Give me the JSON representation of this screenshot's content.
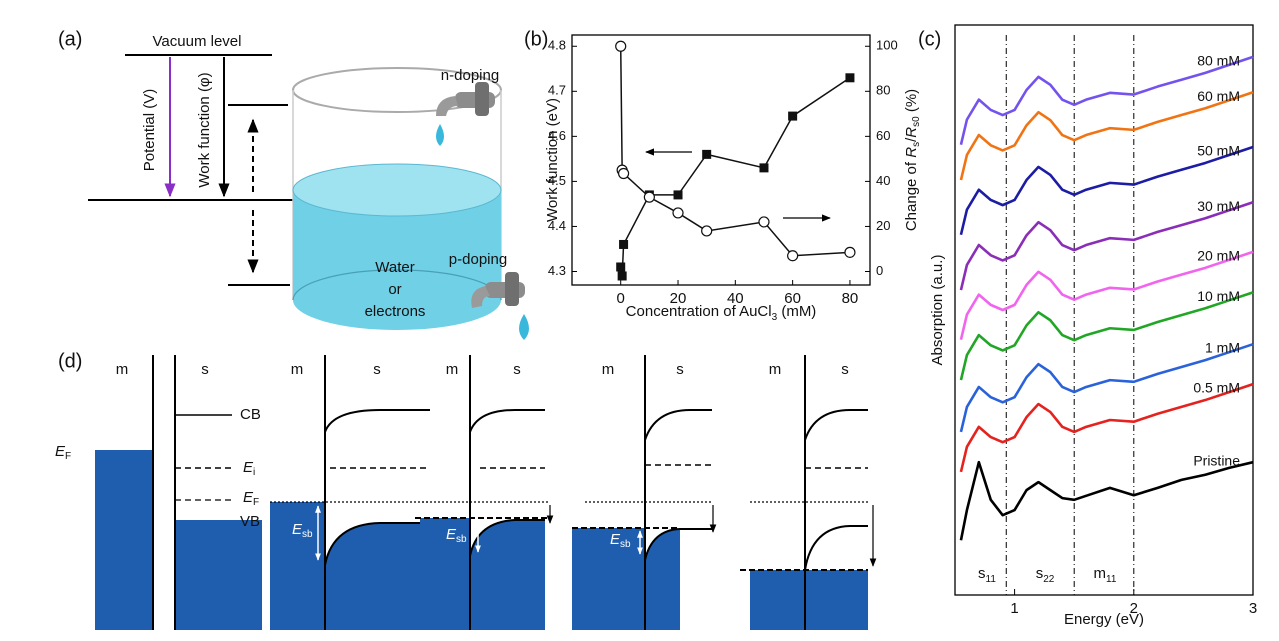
{
  "panel_a": {
    "label": "(a)",
    "vacuum": "Vacuum level",
    "potential": "Potential (V)",
    "work_function": "Work function (φ)",
    "n_doping": "n-doping",
    "p_doping": "p-doping",
    "water": [
      "Water",
      "or",
      "electrons"
    ]
  },
  "chart_data": [
    {
      "type": "line",
      "panel": "(b)",
      "xlabel": {
        "text": "Concentration of AuCl",
        "sub": "3",
        "end": " (mM)"
      },
      "ylabel": "Work function (eV)",
      "y2label": {
        "pre": "Change of ",
        "r1": "R",
        "s1": "s",
        "slash": "/",
        "r2": "R",
        "s2": "s0",
        "end": " (%)"
      },
      "xlim": [
        -17,
        87
      ],
      "xticks": [
        0,
        20,
        40,
        60,
        80
      ],
      "ylim": [
        4.27,
        4.825
      ],
      "yticks": [
        4.3,
        4.4,
        4.5,
        4.6,
        4.7,
        4.8
      ],
      "y2lim": [
        -6,
        105
      ],
      "y2ticks": [
        0,
        20,
        40,
        60,
        80,
        100
      ],
      "series": [
        {
          "marker": "square",
          "color": "#111111",
          "x": [
            0,
            0.5,
            1,
            10,
            20,
            30,
            50,
            60,
            80
          ],
          "values": [
            4.31,
            4.29,
            4.36,
            4.47,
            4.47,
            4.56,
            4.53,
            4.645,
            4.73
          ]
        },
        {
          "marker": "circle",
          "color": "#111111",
          "axis": "y2",
          "x": [
            0,
            0.5,
            1,
            10,
            20,
            30,
            50,
            60,
            80
          ],
          "values": [
            100,
            45,
            43.5,
            33,
            26,
            18,
            22,
            7,
            8.5
          ]
        }
      ]
    },
    {
      "type": "line",
      "panel": "(c)",
      "xlabel": "Energy (eV)",
      "ylabel": "Absorption (a.u.)",
      "xlim": [
        0.5,
        3
      ],
      "xticks": [
        1,
        2,
        3
      ],
      "ylim": [
        0,
        100
      ],
      "x": [
        0.55,
        0.6,
        0.7,
        0.8,
        0.9,
        1.0,
        1.1,
        1.2,
        1.3,
        1.4,
        1.5,
        1.6,
        1.8,
        2.0,
        2.2,
        2.4,
        2.6,
        2.8,
        3.0
      ],
      "vlines": [
        0.93,
        1.5,
        2.0
      ],
      "vline_labels": [
        {
          "main": "s",
          "sub": "11"
        },
        {
          "main": "s",
          "sub": "22"
        },
        {
          "main": "m",
          "sub": "11"
        }
      ],
      "series": [
        {
          "name": "80 mM",
          "color": "#7452ee",
          "values": [
            79.0,
            83.4,
            86.9,
            85.1,
            84.2,
            85.1,
            88.6,
            90.9,
            89.5,
            86.9,
            86.0,
            86.9,
            88.1,
            87.8,
            89.2,
            90.4,
            91.6,
            93.0,
            94.4
          ]
        },
        {
          "name": "60 mM",
          "color": "#f07414",
          "values": [
            72.8,
            77.2,
            80.7,
            78.9,
            78.0,
            78.9,
            82.4,
            84.7,
            83.3,
            80.7,
            79.8,
            80.7,
            81.9,
            81.6,
            83.0,
            84.2,
            85.4,
            86.8,
            88.2
          ]
        },
        {
          "name": "50 mM",
          "color": "#1c1ca4",
          "values": [
            63.2,
            67.6,
            71.1,
            69.3,
            68.4,
            69.3,
            72.8,
            75.1,
            73.7,
            71.1,
            70.2,
            71.1,
            72.3,
            72.0,
            73.4,
            74.6,
            75.8,
            77.2,
            78.6
          ]
        },
        {
          "name": "30 mM",
          "color": "#8a2eb8",
          "values": [
            53.5,
            57.9,
            61.4,
            59.6,
            58.7,
            59.6,
            63.1,
            65.4,
            64.0,
            61.4,
            60.5,
            61.4,
            62.6,
            62.3,
            63.7,
            64.9,
            66.1,
            67.5,
            68.9
          ]
        },
        {
          "name": "20 mM",
          "color": "#f064ee",
          "values": [
            44.8,
            49.2,
            52.7,
            50.9,
            50.0,
            50.9,
            54.4,
            56.7,
            55.3,
            52.7,
            51.8,
            52.7,
            53.9,
            53.6,
            55.0,
            56.2,
            57.4,
            58.8,
            60.2
          ]
        },
        {
          "name": "10 mM",
          "color": "#22a626",
          "values": [
            37.7,
            42.1,
            45.6,
            43.8,
            42.9,
            43.8,
            47.3,
            49.6,
            48.2,
            45.6,
            44.7,
            45.6,
            46.8,
            46.5,
            47.9,
            49.1,
            50.3,
            51.7,
            53.1
          ]
        },
        {
          "name": "1 mM",
          "color": "#2a62da",
          "values": [
            28.6,
            33.0,
            36.5,
            34.7,
            33.8,
            34.7,
            38.2,
            40.5,
            39.1,
            36.5,
            35.6,
            36.5,
            37.7,
            37.4,
            38.8,
            40.0,
            41.2,
            42.6,
            44.0
          ]
        },
        {
          "name": "0.5 mM",
          "color": "#e4221e",
          "values": [
            21.6,
            26.0,
            29.5,
            27.7,
            26.8,
            27.7,
            31.2,
            33.5,
            32.1,
            29.5,
            28.6,
            29.5,
            30.7,
            30.4,
            31.8,
            33.0,
            34.2,
            35.6,
            37.0
          ]
        },
        {
          "name": "Pristine",
          "color": "#000000",
          "values": [
            9.6,
            14.9,
            23.3,
            16.7,
            14.0,
            14.9,
            18.4,
            19.8,
            18.4,
            17.0,
            16.7,
            17.4,
            18.8,
            17.5,
            18.8,
            20.2,
            21.1,
            22.3,
            23.3
          ]
        }
      ]
    }
  ],
  "panel_d": {
    "label": "(d)",
    "headers": [
      "m",
      "s",
      "m",
      "s",
      "m",
      "s",
      "m",
      "s",
      "m",
      "s"
    ],
    "cb": "CB",
    "vb": "VB",
    "E": "E",
    "F": "F",
    "i": "i",
    "sb": "sb"
  }
}
